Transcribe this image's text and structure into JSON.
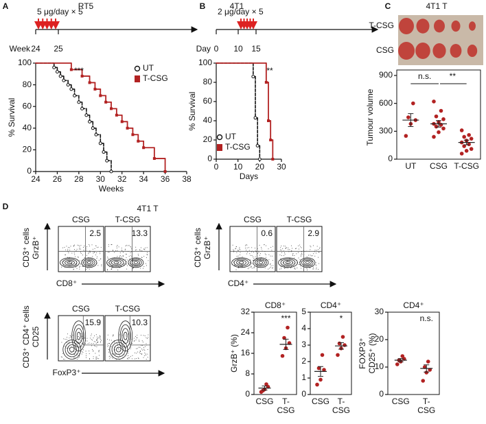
{
  "chart_data": [
    {
      "type": "step",
      "panel": "A",
      "title": "RT5",
      "xlabel": "Weeks",
      "ylabel": "% Survival",
      "timeline": {
        "dose": "5 μg/day × 5",
        "unit": "Week",
        "labels": [
          "24",
          "25"
        ]
      },
      "xlim": [
        24,
        38
      ],
      "xticks": [
        24,
        26,
        28,
        30,
        32,
        34,
        36,
        38
      ],
      "ylim": [
        0,
        100
      ],
      "yticks": [
        0,
        20,
        40,
        60,
        80,
        100
      ],
      "legend": "upper right",
      "annotations": [
        "***"
      ],
      "series": [
        {
          "name": "UT",
          "color": "#111111",
          "dashed": true,
          "x": [
            24,
            25.7,
            26,
            26.3,
            26.6,
            27,
            27.3,
            27.6,
            28,
            28.3,
            28.7,
            29,
            29.3,
            29.6,
            30,
            30.3,
            30.6,
            31
          ],
          "values": [
            100,
            96,
            92,
            88,
            84,
            80,
            76,
            70,
            64,
            58,
            52,
            46,
            40,
            34,
            26,
            18,
            10,
            0
          ]
        },
        {
          "name": "T-CSG",
          "color": "#b22222",
          "dashed": false,
          "x": [
            24,
            27.3,
            28.3,
            29,
            29.5,
            30,
            30.5,
            31,
            31.5,
            32,
            32.5,
            33,
            33.5,
            34,
            35,
            36
          ],
          "values": [
            100,
            94,
            88,
            82,
            76,
            70,
            64,
            58,
            52,
            46,
            40,
            34,
            28,
            22,
            12,
            0
          ]
        }
      ]
    },
    {
      "type": "step",
      "panel": "B",
      "title": "4T1",
      "xlabel": "Days",
      "ylabel": "% Survival",
      "timeline": {
        "dose": "2 μg/day × 5",
        "unit": "Day",
        "labels": [
          "0",
          "10",
          "15"
        ]
      },
      "xlim": [
        0,
        30
      ],
      "xticks": [
        0,
        10,
        20,
        30
      ],
      "ylim": [
        0,
        100
      ],
      "yticks": [
        0,
        20,
        40,
        60,
        80,
        100
      ],
      "legend": "lower left",
      "annotations": [
        "**"
      ],
      "series": [
        {
          "name": "UT",
          "color": "#111111",
          "dashed": true,
          "x": [
            0,
            17,
            18,
            19,
            20
          ],
          "values": [
            100,
            86,
            43,
            14,
            0
          ]
        },
        {
          "name": "T-CSG",
          "color": "#b22222",
          "dashed": false,
          "x": [
            0,
            23,
            24,
            25,
            26
          ],
          "values": [
            100,
            80,
            40,
            20,
            0
          ]
        }
      ]
    },
    {
      "type": "dot",
      "panel": "C",
      "title": "4T1 T",
      "photo_labels": [
        "T-CSG",
        "CSG"
      ],
      "ylabel": [
        "Tumour volume"
      ],
      "categories": [
        "UT",
        "CSG",
        "T-CSG"
      ],
      "points": [
        [
          250,
          380,
          420,
          450,
          600
        ],
        [
          240,
          290,
          330,
          350,
          370,
          380,
          400,
          430,
          460,
          520,
          620
        ],
        [
          60,
          90,
          110,
          140,
          160,
          180,
          200,
          220,
          240,
          260,
          310
        ]
      ],
      "mean": [
        420,
        380,
        180
      ],
      "sem": [
        70,
        35,
        25
      ],
      "ylim": [
        0,
        900
      ],
      "yticks": [
        0,
        300,
        600,
        900
      ],
      "color": "#b22222",
      "annotations": [
        "n.s.",
        "**"
      ]
    },
    {
      "type": "flow",
      "panel": "D",
      "subtitle": "4T1 T",
      "categories": [
        "CSG",
        "T-CSG"
      ],
      "values": [
        2.5,
        13.3
      ],
      "ylabel": [
        "CD3⁺ cells",
        "GrzB⁺"
      ],
      "xlabel": "CD8⁺"
    },
    {
      "type": "flow",
      "categories": [
        "CSG",
        "T-CSG"
      ],
      "values": [
        0.6,
        2.9
      ],
      "ylabel": [
        "CD3⁺ cells",
        "GrzB⁺"
      ],
      "xlabel": "CD4⁺"
    },
    {
      "type": "flow",
      "categories": [
        "CSG",
        "T-CSG"
      ],
      "values": [
        15.9,
        10.3
      ],
      "ylabel": [
        "CD3⁺ CD4⁺ cells",
        "CD25"
      ],
      "xlabel": "FoxP3⁺"
    },
    {
      "type": "dot",
      "title": "CD8⁺",
      "ylabel": [
        "GrzB⁺ (%)"
      ],
      "categories": [
        "CSG",
        "T-CSG"
      ],
      "points": [
        [
          1,
          2,
          3,
          1.5,
          4
        ],
        [
          15,
          18,
          20,
          22,
          26
        ]
      ],
      "mean": [
        2.5,
        19.5
      ],
      "sem": [
        0.8,
        2
      ],
      "ylim": [
        0,
        32
      ],
      "yticks": [
        0,
        8,
        16,
        24,
        32
      ],
      "color": "#b22222",
      "annotations": [
        "***"
      ]
    },
    {
      "type": "dot",
      "title": "CD4⁺",
      "ylabel": [],
      "categories": [
        "CSG",
        "T-CSG"
      ],
      "points": [
        [
          0.6,
          0.9,
          1.5,
          1.6,
          2.4
        ],
        [
          2.4,
          2.8,
          3.0,
          3.1,
          3.5
        ]
      ],
      "mean": [
        1.4,
        2.95
      ],
      "sem": [
        0.3,
        0.2
      ],
      "ylim": [
        0,
        5
      ],
      "yticks": [
        0,
        1,
        2,
        3,
        4,
        5
      ],
      "color": "#b22222",
      "annotations": [
        "*"
      ]
    },
    {
      "type": "dot",
      "title": "CD4⁺",
      "ylabel": [
        "FOXP3⁺",
        "CD25⁺ (%)"
      ],
      "categories": [
        "CSG",
        "T-CSG"
      ],
      "points": [
        [
          11,
          12,
          13,
          12.5,
          14
        ],
        [
          5,
          8,
          9,
          10,
          12
        ]
      ],
      "mean": [
        12.5,
        9.5
      ],
      "sem": [
        0.6,
        1.3
      ],
      "ylim": [
        0,
        30
      ],
      "yticks": [
        0,
        10,
        20,
        30
      ],
      "color": "#b22222",
      "annotations": [
        "n.s."
      ]
    }
  ]
}
